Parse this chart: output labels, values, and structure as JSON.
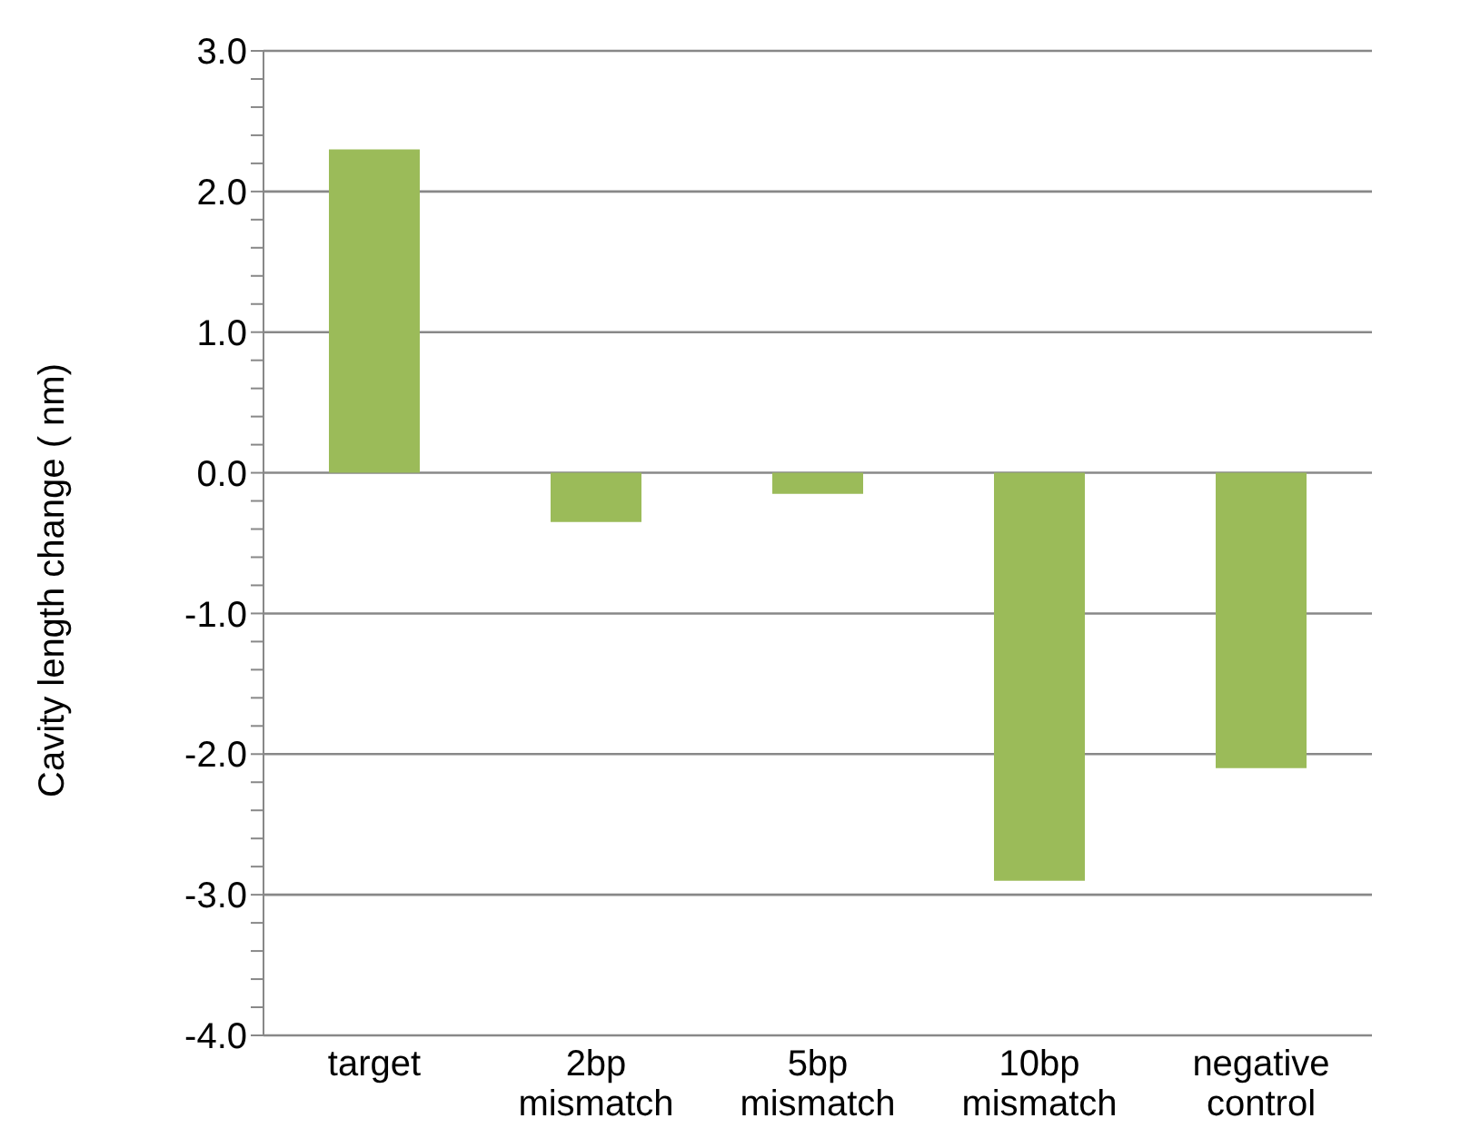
{
  "chart_data": {
    "type": "bar",
    "ylabel": "Cavity length change ( nm)",
    "categories": [
      "target",
      "2bp mismatch",
      "5bp mismatch",
      "10bp mismatch",
      "negative control"
    ],
    "values": [
      2.3,
      -0.35,
      -0.15,
      -2.9,
      -2.1
    ],
    "color": "#9bbb59",
    "ylim": [
      -4,
      3
    ],
    "yticks": [
      {
        "value": -4,
        "label": "-4.0"
      },
      {
        "value": -3.8,
        "label": null
      },
      {
        "value": -3.6,
        "label": null
      },
      {
        "value": -3.4,
        "label": null
      },
      {
        "value": -3.2,
        "label": null
      },
      {
        "value": -3,
        "label": "-3.0"
      },
      {
        "value": -2.8,
        "label": null
      },
      {
        "value": -2.6,
        "label": null
      },
      {
        "value": -2.4,
        "label": null
      },
      {
        "value": -2.2,
        "label": null
      },
      {
        "value": -2,
        "label": "-2.0"
      },
      {
        "value": -1.8,
        "label": null
      },
      {
        "value": -1.6,
        "label": null
      },
      {
        "value": -1.4,
        "label": null
      },
      {
        "value": -1.2,
        "label": null
      },
      {
        "value": -1,
        "label": "-1.0"
      },
      {
        "value": -0.8,
        "label": null
      },
      {
        "value": -0.6,
        "label": null
      },
      {
        "value": -0.4,
        "label": null
      },
      {
        "value": -0.2,
        "label": null
      },
      {
        "value": 0,
        "label": "0.0"
      },
      {
        "value": 0.2,
        "label": null
      },
      {
        "value": 0.4,
        "label": null
      },
      {
        "value": 0.6,
        "label": null
      },
      {
        "value": 0.8,
        "label": null
      },
      {
        "value": 1,
        "label": "1.0"
      },
      {
        "value": 1.2,
        "label": null
      },
      {
        "value": 1.4,
        "label": null
      },
      {
        "value": 1.6,
        "label": null
      },
      {
        "value": 1.8,
        "label": null
      },
      {
        "value": 2,
        "label": "2.0"
      },
      {
        "value": 2.2,
        "label": null
      },
      {
        "value": 2.4,
        "label": null
      },
      {
        "value": 2.6,
        "label": null
      },
      {
        "value": 2.8,
        "label": null
      },
      {
        "value": 3,
        "label": "3.0"
      }
    ],
    "grid": "y"
  }
}
